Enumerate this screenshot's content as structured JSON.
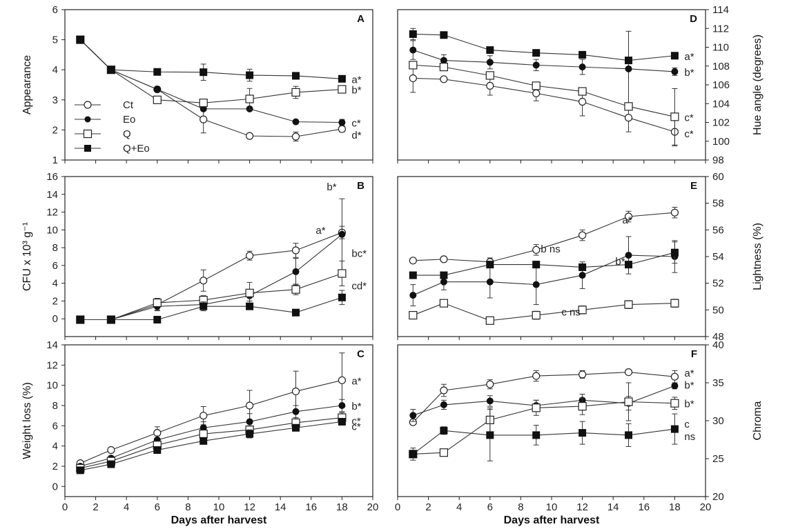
{
  "legend": [
    {
      "key": "ct",
      "label": "Ct",
      "marker": "open-circle"
    },
    {
      "key": "eo",
      "label": "Eo",
      "marker": "filled-circle"
    },
    {
      "key": "q",
      "label": "Q",
      "marker": "open-square"
    },
    {
      "key": "qeo",
      "label": "Q+Eo",
      "marker": "filled-square"
    }
  ],
  "chart_data": [
    {
      "id": "A",
      "type": "line",
      "panel_label": "A",
      "xlabel": "",
      "ylabel": "Appearance",
      "xlim": [
        0,
        20
      ],
      "ylim": [
        1,
        6
      ],
      "yticks": [
        1,
        2,
        3,
        4,
        5,
        6
      ],
      "xticks": [],
      "y_axis_side": "left",
      "x": [
        1,
        3,
        6,
        9,
        12,
        15,
        18
      ],
      "series": [
        {
          "key": "ct",
          "values": [
            5,
            4,
            3.35,
            2.35,
            1.8,
            1.78,
            2.03
          ],
          "errors": [
            0,
            0,
            0,
            0.45,
            0,
            0.15,
            0.1
          ],
          "annotation": "d*"
        },
        {
          "key": "eo",
          "values": [
            5,
            4,
            3.35,
            2.7,
            2.7,
            2.27,
            2.25
          ],
          "errors": [
            0,
            0,
            0,
            0,
            0,
            0,
            0.1
          ],
          "annotation": "c*"
        },
        {
          "key": "q",
          "values": [
            5,
            4,
            3.0,
            2.9,
            3.03,
            3.25,
            3.35
          ],
          "errors": [
            0,
            0,
            0,
            0.12,
            0.35,
            0.2,
            0.1
          ],
          "annotation": "b*"
        },
        {
          "key": "qeo",
          "values": [
            5,
            4,
            3.93,
            3.92,
            3.82,
            3.8,
            3.7
          ],
          "errors": [
            0,
            0,
            0,
            0.27,
            0.2,
            0,
            0.1
          ],
          "annotation": "a*"
        }
      ]
    },
    {
      "id": "B",
      "type": "line",
      "panel_label": "B",
      "xlabel": "",
      "ylabel": "CFU x 10³ g⁻¹",
      "xlim": [
        0,
        20
      ],
      "ylim": [
        -2,
        16
      ],
      "yticks": [
        0,
        2,
        4,
        6,
        8,
        10,
        12,
        14,
        16
      ],
      "xticks": [],
      "y_axis_side": "left",
      "x": [
        1,
        3,
        6,
        9,
        12,
        15,
        18
      ],
      "series": [
        {
          "key": "ct",
          "values": [
            -0.1,
            -0.1,
            1.6,
            4.3,
            7.1,
            7.7,
            9.7
          ],
          "errors": [
            0,
            0,
            0.7,
            1.2,
            0.5,
            0.8,
            0.7
          ],
          "annotation": "a*"
        },
        {
          "key": "eo",
          "values": [
            -0.1,
            -0.1,
            1.4,
            1.6,
            2.6,
            5.3,
            9.5
          ],
          "errors": [
            0,
            0,
            0.4,
            0.5,
            0.6,
            1.5,
            4.0
          ],
          "annotation": "b*"
        },
        {
          "key": "q",
          "values": [
            -0.1,
            -0.1,
            1.8,
            2.1,
            2.9,
            3.3,
            5.1
          ],
          "errors": [
            0,
            0,
            0.4,
            0.5,
            1.2,
            0.6,
            1.4
          ],
          "annotation": "bc*"
        },
        {
          "key": "qeo",
          "values": [
            -0.1,
            -0.1,
            -0.1,
            1.4,
            1.4,
            0.7,
            2.4
          ],
          "errors": [
            0,
            0,
            0,
            0.5,
            0,
            0,
            0.8
          ],
          "annotation": "cd*"
        }
      ]
    },
    {
      "id": "C",
      "type": "line",
      "panel_label": "C",
      "xlabel": "Days after harvest",
      "ylabel": "Weight loss (%)",
      "xlim": [
        0,
        20
      ],
      "ylim": [
        -1,
        14
      ],
      "yticks": [
        0,
        2,
        4,
        6,
        8,
        10,
        12,
        14
      ],
      "xticks": [
        0,
        2,
        4,
        6,
        8,
        10,
        12,
        14,
        16,
        18,
        20
      ],
      "y_axis_side": "left",
      "x": [
        1,
        3,
        6,
        9,
        12,
        15,
        18
      ],
      "series": [
        {
          "key": "ct",
          "values": [
            2.3,
            3.6,
            5.3,
            7.0,
            8.0,
            9.4,
            10.5
          ],
          "errors": [
            0.15,
            0.2,
            0.6,
            0.9,
            1.5,
            2.0,
            2.7
          ],
          "annotation": "a*"
        },
        {
          "key": "eo",
          "values": [
            2.0,
            2.8,
            4.6,
            5.8,
            6.4,
            7.4,
            8.0
          ],
          "errors": [
            0.15,
            0.2,
            0.4,
            0.6,
            0.8,
            0.6,
            0.6
          ],
          "annotation": "b*"
        },
        {
          "key": "q",
          "values": [
            1.8,
            2.5,
            4.1,
            5.2,
            5.6,
            6.3,
            6.8
          ],
          "errors": [
            0.2,
            0.2,
            0.3,
            0.3,
            0.4,
            0.5,
            0.5
          ],
          "annotation": "c*"
        },
        {
          "key": "qeo",
          "values": [
            1.6,
            2.2,
            3.6,
            4.5,
            5.2,
            5.8,
            6.4
          ],
          "errors": [
            0.3,
            0.2,
            0.2,
            0.3,
            0.4,
            0.2,
            0.3
          ],
          "annotation": "c*"
        }
      ]
    },
    {
      "id": "D",
      "type": "line",
      "panel_label": "D",
      "xlabel": "",
      "ylabel": "Hue angle (degrees)",
      "xlim": [
        0,
        20
      ],
      "ylim": [
        98,
        114
      ],
      "yticks": [
        98,
        100,
        102,
        104,
        106,
        108,
        110,
        112,
        114
      ],
      "xticks": [],
      "y_axis_side": "right",
      "x": [
        1,
        3,
        6,
        9,
        12,
        15,
        18
      ],
      "series": [
        {
          "key": "ct",
          "values": [
            106.7,
            106.6,
            105.9,
            105.1,
            104.2,
            102.5,
            101.0
          ],
          "errors": [
            1.5,
            0,
            1.0,
            0.8,
            1.5,
            1.5,
            1.5
          ],
          "annotation": "c*"
        },
        {
          "key": "eo",
          "values": [
            109.7,
            108.6,
            108.4,
            108.1,
            107.9,
            107.7,
            107.4
          ],
          "errors": [
            1.0,
            0.6,
            0.7,
            0.6,
            0.8,
            4.0,
            0.4
          ],
          "annotation": "b*"
        },
        {
          "key": "q",
          "values": [
            108.1,
            107.9,
            107.0,
            105.9,
            105.3,
            103.7,
            102.6
          ],
          "errors": [
            0,
            0,
            0,
            0,
            0,
            0,
            3.0
          ],
          "annotation": "c*"
        },
        {
          "key": "qeo",
          "values": [
            111.4,
            111.3,
            109.7,
            109.4,
            109.2,
            108.6,
            109.1
          ],
          "errors": [
            0.6,
            0.2,
            0.2,
            0,
            0,
            0,
            0.3
          ],
          "annotation": "a*"
        }
      ]
    },
    {
      "id": "E",
      "type": "line",
      "panel_label": "E",
      "xlabel": "",
      "ylabel": "Lightness (%)",
      "xlim": [
        0,
        20
      ],
      "ylim": [
        48,
        60
      ],
      "yticks": [
        48,
        50,
        52,
        54,
        56,
        58,
        60
      ],
      "xticks": [],
      "y_axis_side": "right",
      "x": [
        1,
        3,
        6,
        9,
        12,
        15,
        18
      ],
      "series": [
        {
          "key": "ct",
          "values": [
            53.7,
            53.8,
            53.6,
            54.5,
            55.6,
            57.0,
            57.3
          ],
          "errors": [
            0,
            0.2,
            0.3,
            0.4,
            0.4,
            0.4,
            0.4
          ],
          "annotation": "a*"
        },
        {
          "key": "eo",
          "values": [
            51.1,
            52.1,
            52.1,
            51.9,
            52.6,
            54.1,
            54.0
          ],
          "errors": [
            0.8,
            0.6,
            1.2,
            1.5,
            1.0,
            1.4,
            1.2
          ],
          "annotation": "b*"
        },
        {
          "key": "q",
          "values": [
            49.6,
            50.5,
            49.2,
            49.6,
            50.0,
            50.4,
            50.5
          ],
          "errors": [
            0.2,
            0,
            0.2,
            0.3,
            0.3,
            0.3,
            0.3
          ],
          "annotation": "c ns"
        },
        {
          "key": "qeo",
          "values": [
            52.6,
            52.6,
            53.4,
            53.4,
            53.2,
            53.4,
            54.3
          ],
          "errors": [
            0,
            0,
            0,
            0,
            0,
            0,
            0.8
          ],
          "annotation": "b ns"
        }
      ]
    },
    {
      "id": "F",
      "type": "line",
      "panel_label": "F",
      "xlabel": "Days after harvest",
      "ylabel": "Chroma",
      "xlim": [
        0,
        20
      ],
      "ylim": [
        20,
        40
      ],
      "yticks": [
        20,
        25,
        30,
        35,
        40
      ],
      "xticks": [
        0,
        2,
        4,
        6,
        8,
        10,
        12,
        14,
        16,
        18,
        20
      ],
      "y_axis_side": "right",
      "x": [
        1,
        3,
        6,
        9,
        12,
        15,
        18
      ],
      "series": [
        {
          "key": "ct",
          "values": [
            29.8,
            34.0,
            34.8,
            35.9,
            36.1,
            36.4,
            35.8
          ],
          "errors": [
            0,
            0.8,
            0.6,
            0.7,
            0.5,
            0.3,
            0.8
          ],
          "annotation": "a*"
        },
        {
          "key": "eo",
          "values": [
            30.7,
            32.1,
            32.6,
            32.0,
            32.7,
            32.3,
            34.6
          ],
          "errors": [
            0.8,
            0.6,
            0.7,
            0.7,
            0.8,
            0.9,
            0.4
          ],
          "annotation": "b*"
        },
        {
          "key": "q",
          "values": [
            25.6,
            25.8,
            30.1,
            31.7,
            31.9,
            32.5,
            32.3
          ],
          "errors": [
            0.5,
            0.3,
            1.6,
            1.0,
            1.1,
            2.5,
            0.8
          ],
          "annotation": "b*"
        },
        {
          "key": "qeo",
          "values": [
            25.6,
            28.7,
            28.1,
            28.1,
            28.4,
            28.1,
            28.9
          ],
          "errors": [
            0.8,
            0.5,
            3.4,
            1.3,
            1.5,
            1.5,
            2.0
          ],
          "annotation": "c\nns"
        }
      ]
    }
  ]
}
